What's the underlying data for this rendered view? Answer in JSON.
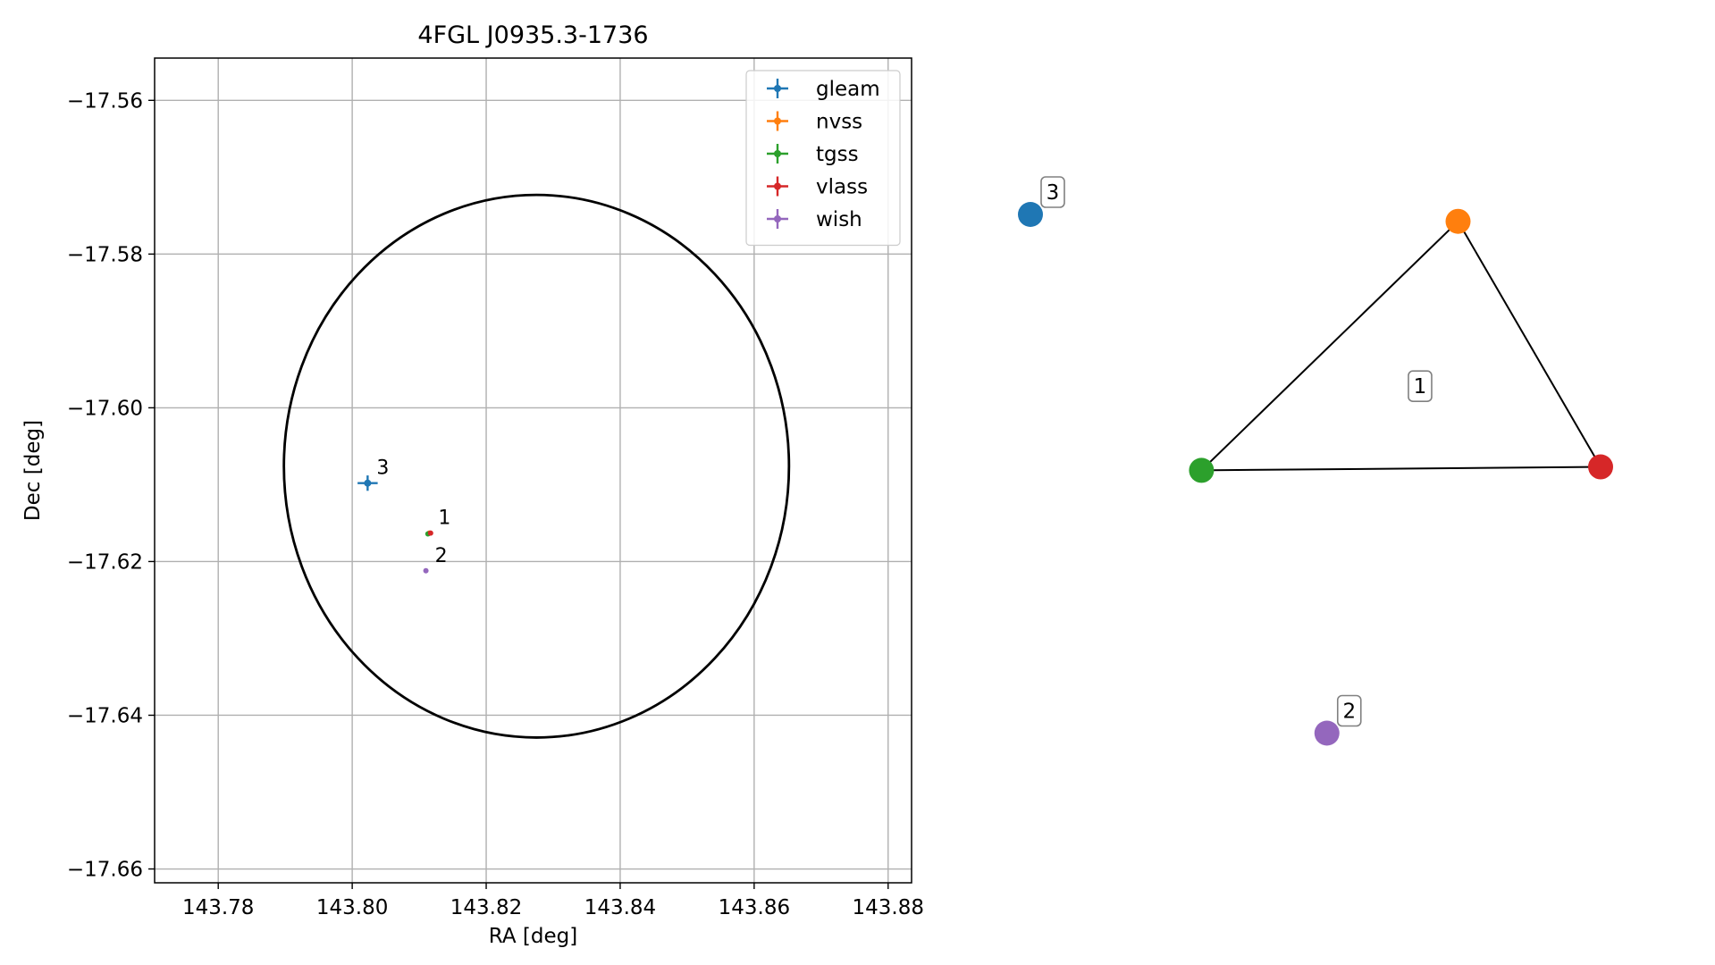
{
  "chart_data": [
    {
      "type": "scatter",
      "title": "4FGL J0935.3-1736",
      "xlabel": "RA [deg]",
      "ylabel": "Dec [deg]",
      "xlim": [
        143.7705,
        143.8835
      ],
      "ylim": [
        -17.6618,
        -17.5545
      ],
      "xticks": [
        143.78,
        143.8,
        143.82,
        143.84,
        143.86,
        143.88
      ],
      "xtick_labels": [
        "143.78",
        "143.80",
        "143.82",
        "143.84",
        "143.86",
        "143.88"
      ],
      "yticks": [
        -17.56,
        -17.58,
        -17.6,
        -17.62,
        -17.64,
        -17.66
      ],
      "ytick_labels": [
        "−17.56",
        "−17.58",
        "−17.60",
        "−17.62",
        "−17.64",
        "−17.66"
      ],
      "grid": true,
      "legend_position": "top-right",
      "series": [
        {
          "name": "gleam",
          "color": "#1f77b4",
          "x": [
            143.8023
          ],
          "y": [
            -17.6098
          ],
          "xerr": 0.0015,
          "yerr": 0.001,
          "marker_size": 4
        },
        {
          "name": "nvss",
          "color": "#ff7f0e",
          "x": [
            143.8115
          ],
          "y": [
            -17.6163
          ],
          "xerr": 0,
          "yerr": 0,
          "marker_size": 3
        },
        {
          "name": "tgss",
          "color": "#2ca02c",
          "x": [
            143.8113
          ],
          "y": [
            -17.6164
          ],
          "xerr": 0,
          "yerr": 0,
          "marker_size": 3
        },
        {
          "name": "vlass",
          "color": "#d62728",
          "x": [
            143.8117
          ],
          "y": [
            -17.6163
          ],
          "xerr": 0,
          "yerr": 0,
          "marker_size": 3
        },
        {
          "name": "wish",
          "color": "#9467bd",
          "x": [
            143.811
          ],
          "y": [
            -17.6212
          ],
          "xerr": 0,
          "yerr": 0,
          "marker_size": 3
        }
      ],
      "circle": {
        "center_x": 143.8275,
        "center_y": -17.6076,
        "radius_x": 0.0377,
        "radius_y": 0.0353,
        "color": "#000000"
      },
      "annotations": [
        {
          "text": "3",
          "x": 143.8023,
          "y": -17.6098
        },
        {
          "text": "1",
          "x": 143.8115,
          "y": -17.6163
        },
        {
          "text": "2",
          "x": 143.811,
          "y": -17.6212
        }
      ]
    },
    {
      "type": "network",
      "nodes": [
        {
          "id": "gleam",
          "color": "#1f77b4",
          "x": 0.0,
          "y": 0.92
        },
        {
          "id": "nvss",
          "color": "#ff7f0e",
          "x": 0.75,
          "y": 0.9
        },
        {
          "id": "tgss",
          "color": "#2ca02c",
          "x": 0.3,
          "y": 0.18
        },
        {
          "id": "vlass",
          "color": "#d62728",
          "x": 1.0,
          "y": 0.19
        },
        {
          "id": "wish",
          "color": "#9467bd",
          "x": 0.52,
          "y": -0.58
        }
      ],
      "edges": [
        [
          "nvss",
          "tgss"
        ],
        [
          "nvss",
          "vlass"
        ],
        [
          "tgss",
          "vlass"
        ]
      ],
      "group_labels": [
        {
          "text": "3",
          "node": "gleam"
        },
        {
          "text": "1",
          "nodes": [
            "nvss",
            "tgss",
            "vlass"
          ]
        },
        {
          "text": "2",
          "node": "wish"
        }
      ]
    }
  ]
}
